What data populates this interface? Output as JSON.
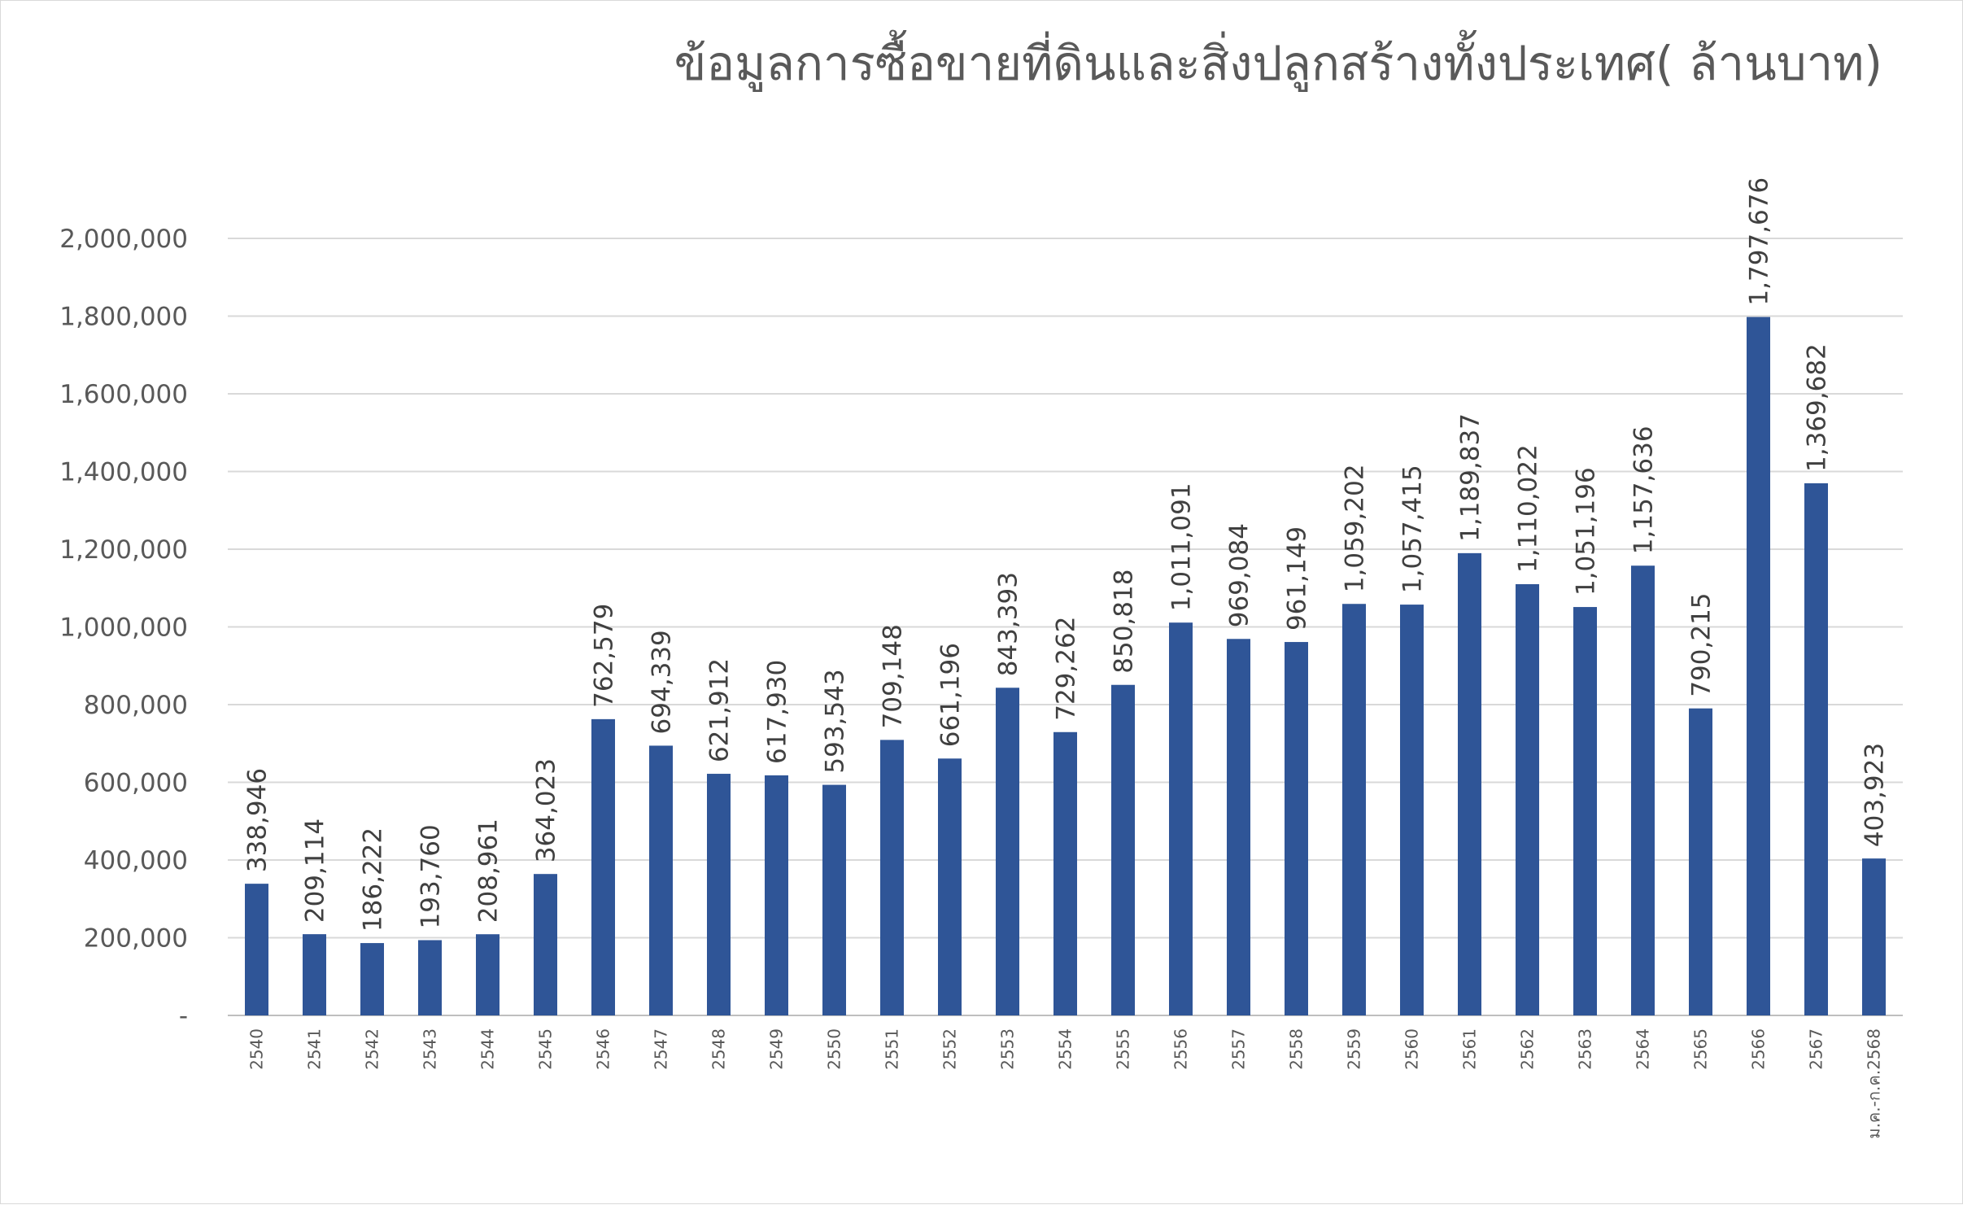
{
  "chart_data": {
    "type": "bar",
    "title": "ข้อมูลการซื้อขายที่ดินและสิ่งปลูกสร้างทั้งประเทศ( ล้านบาท)",
    "xlabel": "",
    "ylabel": "",
    "ylim": [
      0,
      2000000
    ],
    "yticks": [
      0,
      200000,
      400000,
      600000,
      800000,
      1000000,
      1200000,
      1400000,
      1600000,
      1800000,
      2000000
    ],
    "ytick_labels": [
      "-",
      "200,000",
      "400,000",
      "600,000",
      "800,000",
      "1,000,000",
      "1,200,000",
      "1,400,000",
      "1,600,000",
      "1,800,000",
      "2,000,000"
    ],
    "grid": true,
    "legend": "none",
    "bar_color": "#2F5597",
    "categories": [
      "2540",
      "2541",
      "2542",
      "2543",
      "2544",
      "2545",
      "2546",
      "2547",
      "2548",
      "2549",
      "2550",
      "2551",
      "2552",
      "2553",
      "2554",
      "2555",
      "2556",
      "2557",
      "2558",
      "2559",
      "2560",
      "2561",
      "2562",
      "2563",
      "2564",
      "2565",
      "2566",
      "2567",
      "ม.ค.-ก.ค.2568"
    ],
    "values": [
      338946,
      209114,
      186222,
      193760,
      208961,
      364023,
      762579,
      694339,
      621912,
      617930,
      593543,
      709148,
      661196,
      843393,
      729262,
      850818,
      1011091,
      969084,
      961149,
      1059202,
      1057415,
      1189837,
      1110022,
      1051196,
      1157636,
      790215,
      1797676,
      1369682,
      403923
    ],
    "data_labels": [
      "338,946",
      "209,114",
      "186,222",
      "193,760",
      "208,961",
      "364,023",
      "762,579",
      "694,339",
      "621,912",
      "617,930",
      "593,543",
      "709,148",
      "661,196",
      "843,393",
      "729,262",
      "850,818",
      "1,011,091",
      "969,084",
      "961,149",
      "1,059,202",
      "1,057,415",
      "1,189,837",
      "1,110,022",
      "1,051,196",
      "1,157,636",
      "790,215",
      "1,797,676",
      "1,369,682",
      "403,923"
    ]
  }
}
